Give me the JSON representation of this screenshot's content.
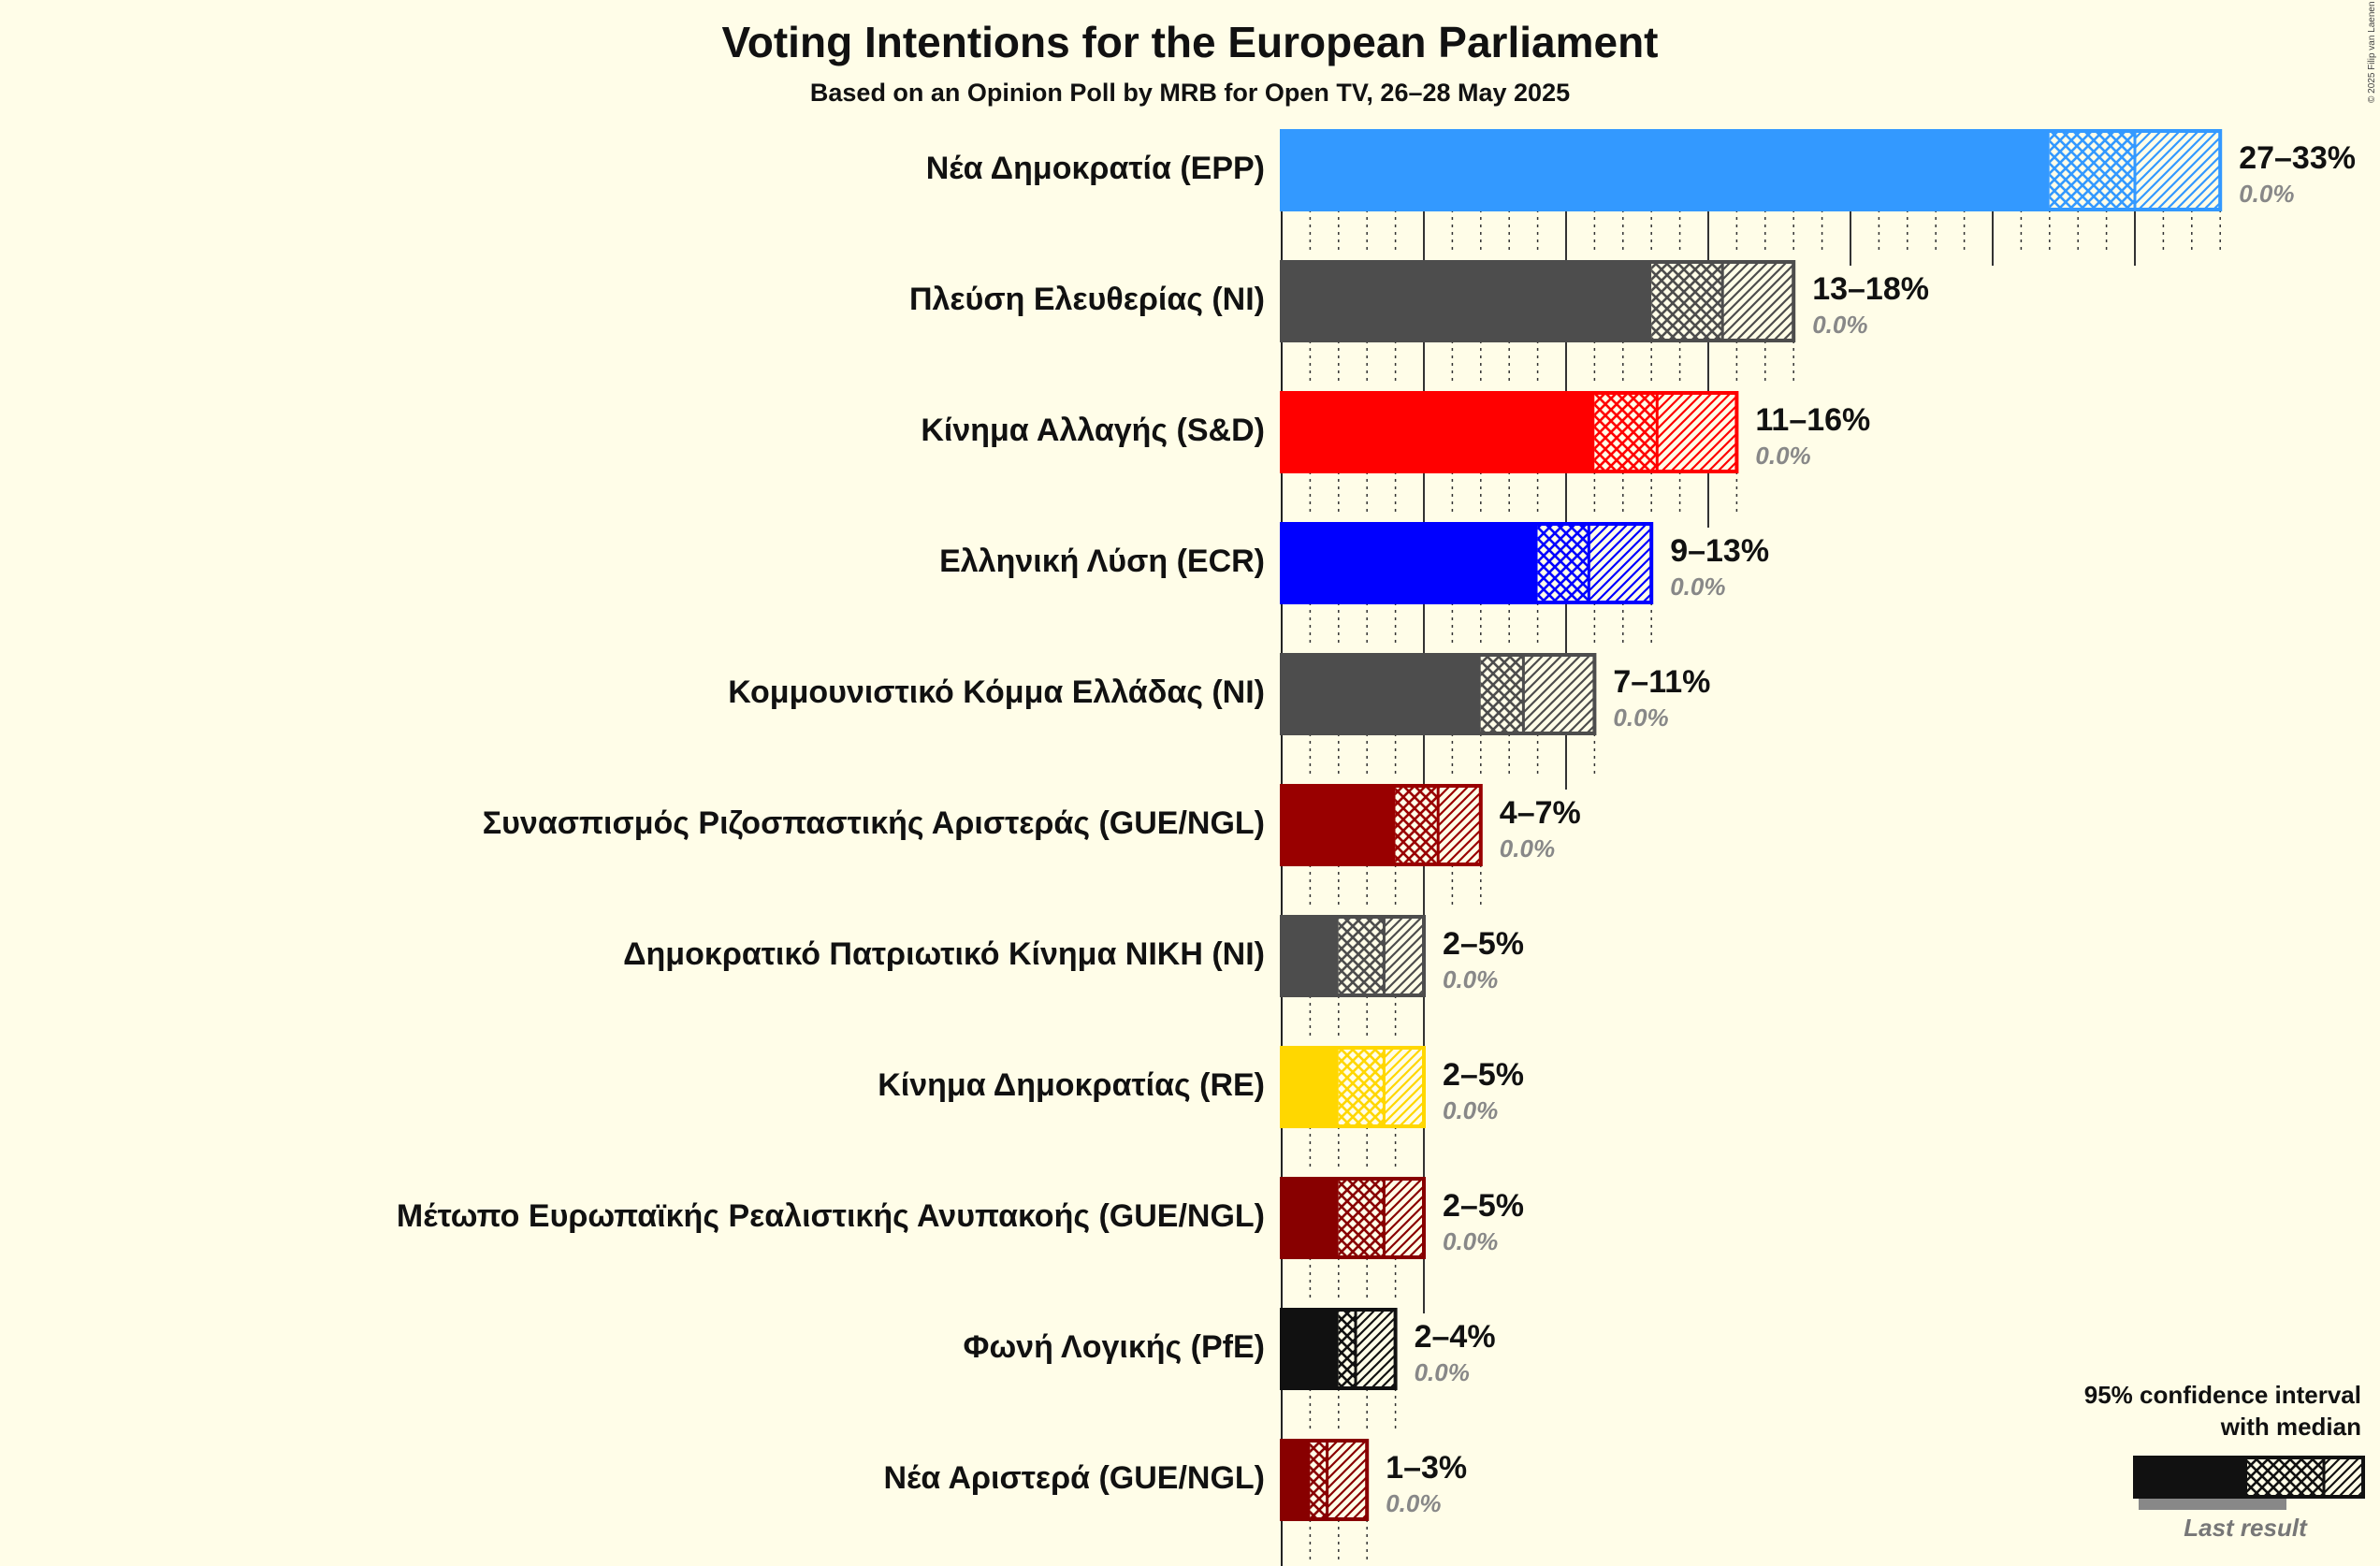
{
  "chart_data": {
    "type": "bar",
    "title": "Voting Intentions for the European Parliament",
    "subtitle": "Based on an Opinion Poll by MRB for Open TV, 26–28 May 2025",
    "copyright": "© 2025 Filip van Laenen",
    "xlim": [
      0,
      33
    ],
    "series": [
      {
        "name": "Νέα Δημοκρατία (EPP)",
        "color": "#3399FF",
        "low": 27,
        "median": 30,
        "high": 33,
        "range_label": "27–33%",
        "last_result_label": "0.0%",
        "last_result": 0.0
      },
      {
        "name": "Πλεύση Ελευθερίας (NI)",
        "color": "#4D4D4D",
        "low": 13,
        "median": 15.5,
        "high": 18,
        "range_label": "13–18%",
        "last_result_label": "0.0%",
        "last_result": 0.0
      },
      {
        "name": "Κίνημα Αλλαγής (S&D)",
        "color": "#FF0000",
        "low": 11,
        "median": 13.2,
        "high": 16,
        "range_label": "11–16%",
        "last_result_label": "0.0%",
        "last_result": 0.0
      },
      {
        "name": "Ελληνική Λύση (ECR)",
        "color": "#0000FF",
        "low": 9,
        "median": 10.8,
        "high": 13,
        "range_label": "9–13%",
        "last_result_label": "0.0%",
        "last_result": 0.0
      },
      {
        "name": "Κομμουνιστικό Κόμμα Ελλάδας (NI)",
        "color": "#4D4D4D",
        "low": 7,
        "median": 8.5,
        "high": 11,
        "range_label": "7–11%",
        "last_result_label": "0.0%",
        "last_result": 0.0
      },
      {
        "name": "Συνασπισμός Ριζοσπαστικής Αριστεράς (GUE/NGL)",
        "color": "#990000",
        "low": 4,
        "median": 5.5,
        "high": 7,
        "range_label": "4–7%",
        "last_result_label": "0.0%",
        "last_result": 0.0
      },
      {
        "name": "Δημοκρατικό Πατριωτικό Κίνημα ΝΙΚΗ (NI)",
        "color": "#4D4D4D",
        "low": 2,
        "median": 3.6,
        "high": 5,
        "range_label": "2–5%",
        "last_result_label": "0.0%",
        "last_result": 0.0
      },
      {
        "name": "Κίνημα Δημοκρατίας (RE)",
        "color": "#FFD700",
        "low": 2,
        "median": 3.6,
        "high": 5,
        "range_label": "2–5%",
        "last_result_label": "0.0%",
        "last_result": 0.0
      },
      {
        "name": "Μέτωπο Ευρωπαϊκής Ρεαλιστικής Ανυπακοής (GUE/NGL)",
        "color": "#880000",
        "low": 2,
        "median": 3.6,
        "high": 5,
        "range_label": "2–5%",
        "last_result_label": "0.0%",
        "last_result": 0.0
      },
      {
        "name": "Φωνή Λογικής (PfE)",
        "color": "#111111",
        "low": 2,
        "median": 2.6,
        "high": 4,
        "range_label": "2–4%",
        "last_result_label": "0.0%",
        "last_result": 0.0
      },
      {
        "name": "Νέα Αριστερά (GUE/NGL)",
        "color": "#880000",
        "low": 1,
        "median": 1.6,
        "high": 3,
        "range_label": "1–3%",
        "last_result_label": "0.0%",
        "last_result": 0.0
      }
    ],
    "legend": {
      "title_line1": "95% confidence interval",
      "title_line2": "with median",
      "last_result": "Last result",
      "placement": "bottom-right"
    }
  }
}
